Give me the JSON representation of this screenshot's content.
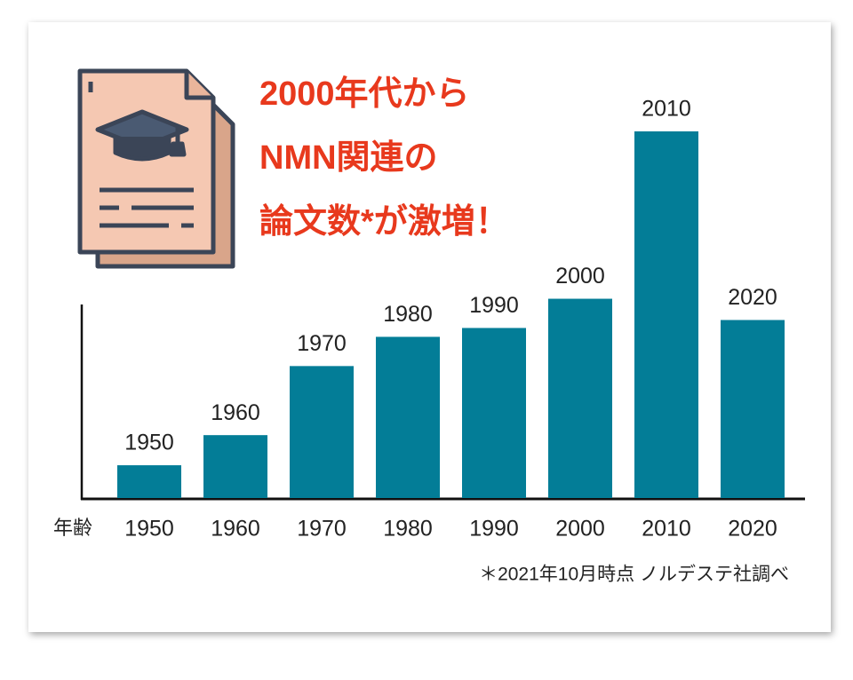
{
  "chart_data": {
    "type": "bar",
    "title": [
      "2000年代から",
      "NMN関連の",
      "論文数*が激増！"
    ],
    "x_label": "年齢",
    "categories": [
      "1950",
      "1960",
      "1970",
      "1980",
      "1990",
      "2000",
      "2010",
      "2020"
    ],
    "values": [
      37,
      71,
      149,
      182,
      192,
      225,
      414,
      201
    ],
    "color": "#037d97",
    "ylim": [
      0,
      420
    ],
    "footnote": "＊2021年10月時点 ノルデステ社調べ"
  }
}
